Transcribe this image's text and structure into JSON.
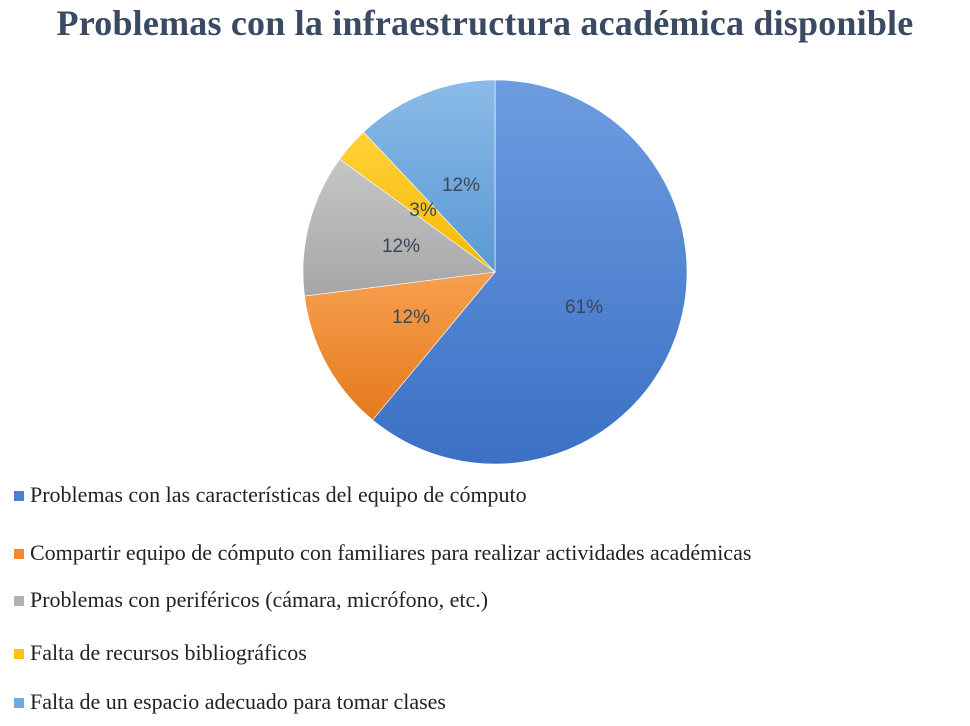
{
  "chart_data": {
    "type": "pie",
    "title": "Problemas con la infraestructura académica disponible",
    "categories": [
      "Problemas con las características del equipo de cómputo",
      "Compartir equipo de cómputo con familiares para realizar actividades académicas",
      "Problemas con periféricos (cámara, micrófono, etc.)",
      "Falta de recursos bibliográficos",
      "Falta de un espacio adecuado para tomar clases"
    ],
    "values": [
      61,
      12,
      12,
      3,
      12
    ],
    "labels": [
      "61%",
      "12%",
      "12%",
      "3%",
      "12%"
    ],
    "colors": [
      "#4a7fd1",
      "#f08a2c",
      "#b3b3b3",
      "#ffc20e",
      "#6fa8dc"
    ],
    "legend_position": "bottom"
  }
}
